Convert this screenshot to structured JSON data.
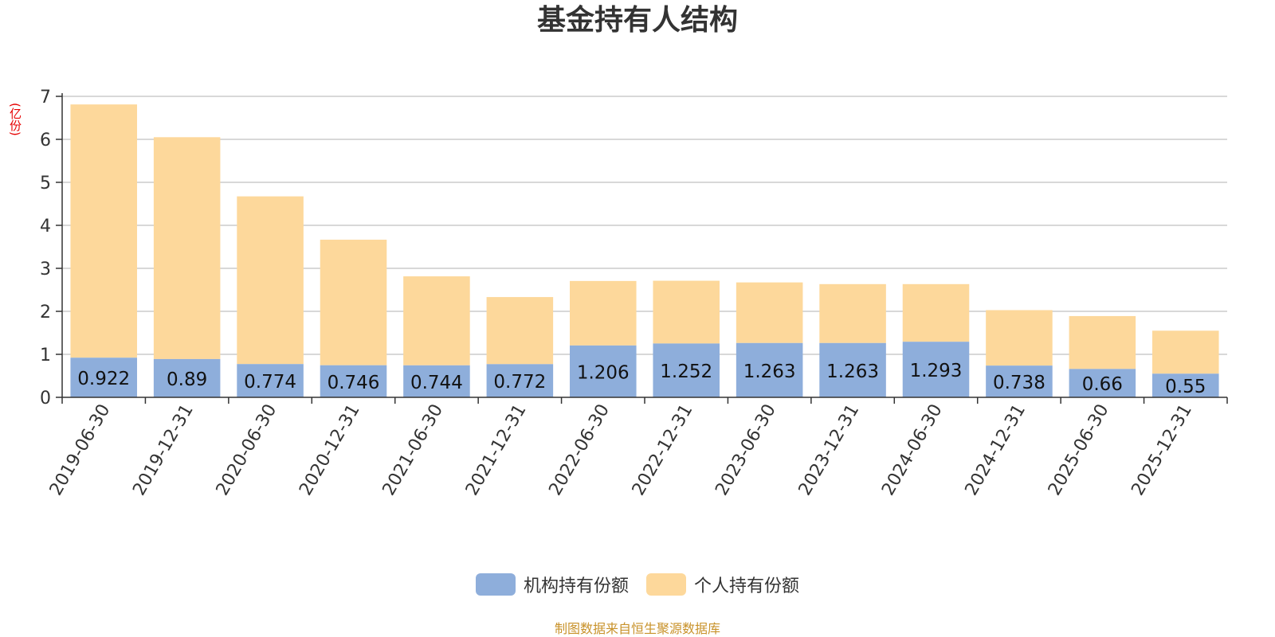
{
  "chart_data": {
    "type": "bar",
    "stacked": true,
    "title": "基金持有人结构",
    "y_unit": "(亿份)",
    "ylim": [
      0,
      7
    ],
    "y_ticks": [
      "0",
      "1",
      "2",
      "3",
      "4",
      "5",
      "6",
      "7"
    ],
    "grid": true,
    "legend_position": "bottom-center",
    "categories": [
      "2019-06-30",
      "2019-12-31",
      "2020-06-30",
      "2020-12-31",
      "2021-06-30",
      "2021-12-31",
      "2022-06-30",
      "2022-12-31",
      "2023-06-30",
      "2023-12-31",
      "2024-06-30",
      "2024-12-31",
      "2025-06-30",
      "2025-12-31"
    ],
    "series": [
      {
        "name": "机构持有份额",
        "color": "#8eaedb",
        "values": [
          0.922,
          0.89,
          0.774,
          0.746,
          0.744,
          0.772,
          1.206,
          1.252,
          1.263,
          1.263,
          1.293,
          0.738,
          0.66,
          0.55
        ],
        "labels": [
          "0.922",
          "0.89",
          "0.774",
          "0.746",
          "0.744",
          "0.772",
          "1.206",
          "1.252",
          "1.263",
          "1.263",
          "1.293",
          "0.738",
          "0.66",
          "0.55"
        ]
      },
      {
        "name": "个人持有份额",
        "color": "#fdd89b",
        "values": [
          5.89,
          5.16,
          3.9,
          2.92,
          2.07,
          1.56,
          1.5,
          1.46,
          1.41,
          1.37,
          1.34,
          1.29,
          1.23,
          1.0
        ]
      }
    ]
  },
  "footer": {
    "source": "制图数据来自恒生聚源数据库"
  }
}
